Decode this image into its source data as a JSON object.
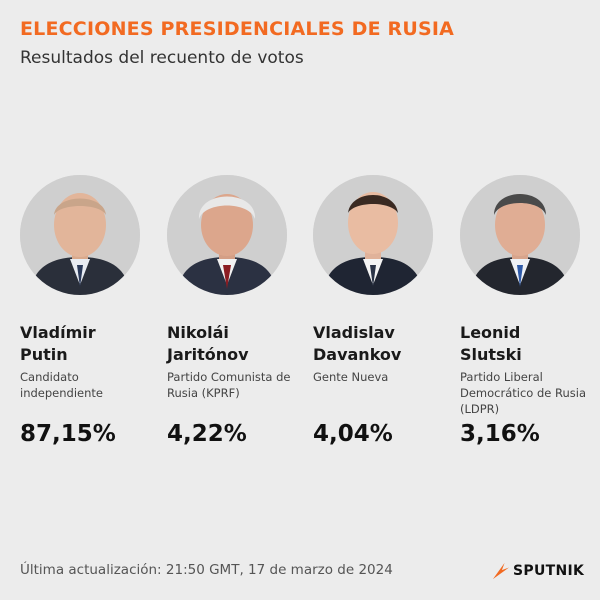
{
  "header": {
    "title": "ELECCIONES PRESIDENCIALES DE RUSIA",
    "subtitle": "Resultados del recuento de votos"
  },
  "candidates": [
    {
      "first_name": "Vladímir",
      "last_name": "Putin",
      "party": "Candidato independiente",
      "percent": "87,15%"
    },
    {
      "first_name": "Nikolái",
      "last_name": "Jaritónov",
      "party": "Partido Comunista de Rusia (KPRF)",
      "percent": "4,22%"
    },
    {
      "first_name": "Vladislav",
      "last_name": "Davankov",
      "party": "Gente Nueva",
      "percent": "4,04%"
    },
    {
      "first_name": "Leonid",
      "last_name": "Slutski",
      "party": "Partido Liberal Democrático de Rusia (LDPR)",
      "percent": "3,16%"
    }
  ],
  "footer": {
    "update_text": "Última actualización: 21:50 GMT, 17 de marzo de 2024",
    "brand": "SPUTNIK",
    "brand_color": "#f26a21"
  },
  "colors": {
    "accent": "#f26a21",
    "background": "#ececec"
  }
}
